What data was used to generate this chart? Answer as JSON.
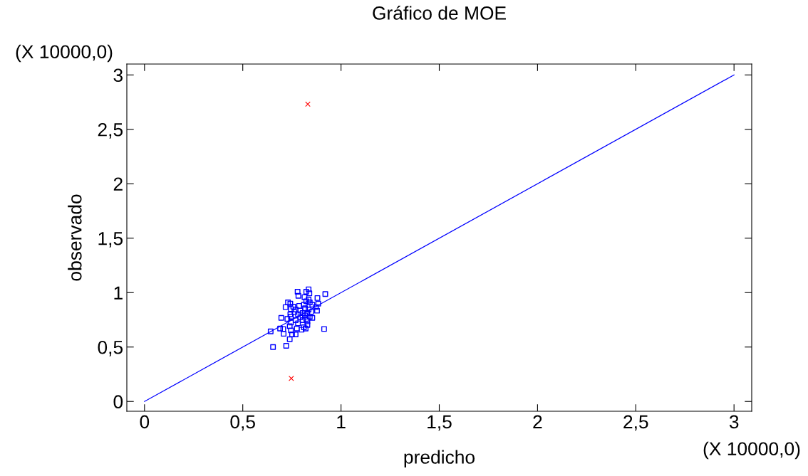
{
  "chart_data": {
    "type": "scatter",
    "title": "Gráfico de MOE",
    "xlabel": "predicho",
    "ylabel": "observado",
    "annotations": [
      "(X 10000,0)",
      "(X 10000,0)"
    ],
    "xlim": [
      -0.09,
      3.09
    ],
    "ylim": [
      -0.09,
      3.1
    ],
    "xticks": [
      0,
      {
        "value": 0.5,
        "label": "0,5"
      },
      1,
      {
        "value": 1.5,
        "label": "1,5"
      },
      2,
      {
        "value": 2.5,
        "label": "2,5"
      },
      3
    ],
    "yticks": [
      0,
      {
        "value": 0.5,
        "label": "0,5"
      },
      1,
      {
        "value": 1.5,
        "label": "1,5"
      },
      2,
      {
        "value": 2.5,
        "label": "2,5"
      },
      3
    ],
    "grid": false,
    "legend": false,
    "series": [
      {
        "marker": "square",
        "color": "#0000ff",
        "x": [
          0.779,
          0.783,
          0.823,
          0.835,
          0.839,
          0.92,
          0.88,
          0.814,
          0.835,
          0.823,
          0.841,
          0.884,
          0.73,
          0.742,
          0.718,
          0.757,
          0.787,
          0.811,
          0.854,
          0.872,
          0.745,
          0.769,
          0.793,
          0.817,
          0.835,
          0.878,
          0.763,
          0.805,
          0.829,
          0.848,
          0.742,
          0.781,
          0.817,
          0.841,
          0.696,
          0.745,
          0.793,
          0.823,
          0.854,
          0.727,
          0.769,
          0.805,
          0.745,
          0.781,
          0.829,
          0.739,
          0.775,
          0.811,
          0.829,
          0.642,
          0.69,
          0.706,
          0.708,
          0.745,
          0.799,
          0.82,
          0.914,
          0.751,
          0.769,
          0.739,
          0.654,
          0.721
        ],
        "values": [
          1.008,
          0.971,
          1.008,
          1.03,
          0.993,
          0.987,
          0.95,
          0.958,
          0.936,
          0.921,
          0.91,
          0.899,
          0.91,
          0.899,
          0.867,
          0.871,
          0.878,
          0.889,
          0.889,
          0.867,
          0.849,
          0.845,
          0.834,
          0.856,
          0.845,
          0.834,
          0.823,
          0.812,
          0.812,
          0.823,
          0.801,
          0.801,
          0.79,
          0.779,
          0.768,
          0.779,
          0.775,
          0.758,
          0.768,
          0.758,
          0.747,
          0.747,
          0.725,
          0.718,
          0.736,
          0.692,
          0.67,
          0.681,
          0.703,
          0.644,
          0.67,
          0.666,
          0.622,
          0.653,
          0.659,
          0.67,
          0.666,
          0.616,
          0.616,
          0.572,
          0.5,
          0.511
        ]
      },
      {
        "marker": "cross",
        "color": "#ff0000",
        "x": [
          0.831,
          0.747
        ],
        "values": [
          2.731,
          0.212
        ]
      },
      {
        "type": "line",
        "color": "#0000ff",
        "x": [
          0,
          3
        ],
        "values": [
          0,
          3
        ]
      }
    ]
  }
}
